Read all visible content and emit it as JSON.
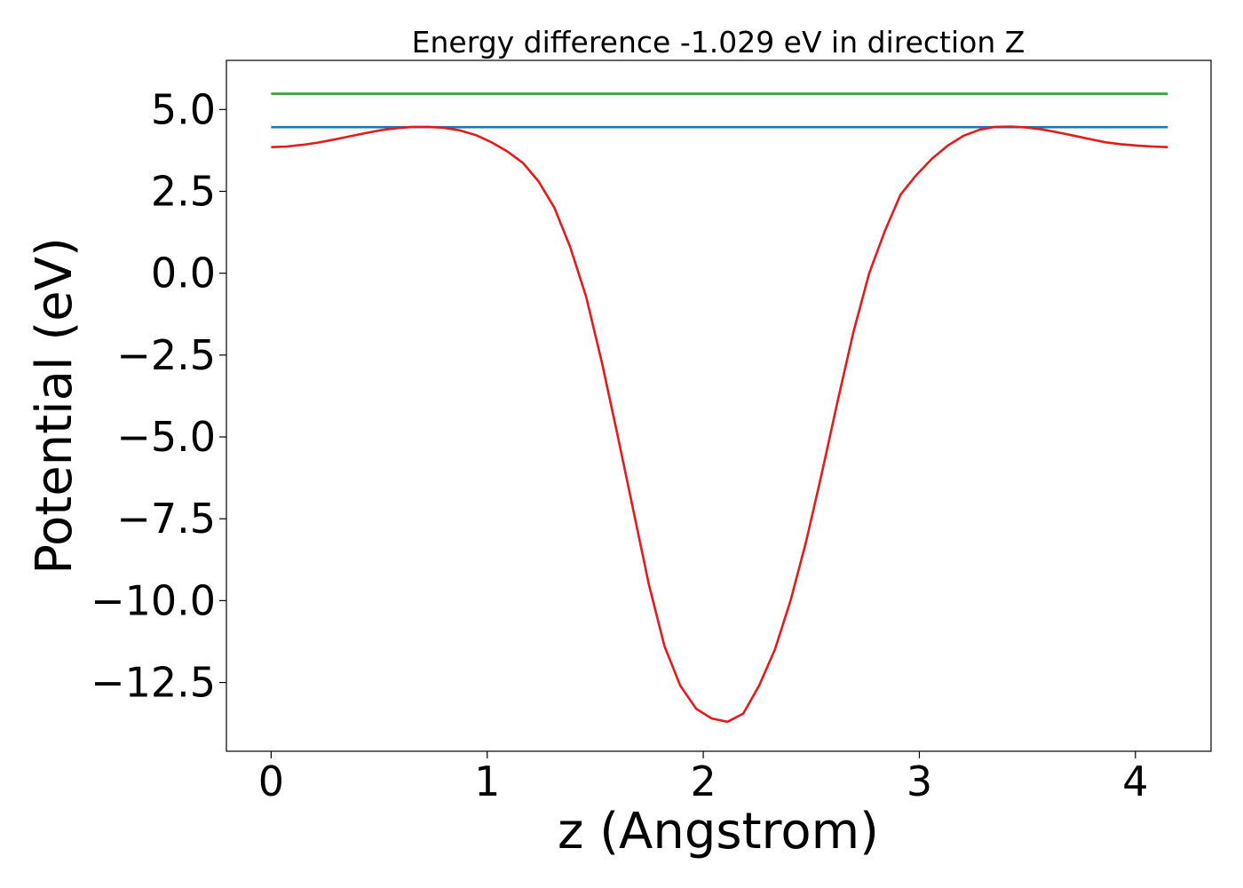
{
  "chart_data": {
    "type": "line",
    "title": "Energy difference -1.029 eV in direction Z",
    "xlabel": "z (Angstrom)",
    "ylabel": "Potential (eV)",
    "xlim": [
      -0.207,
      4.35
    ],
    "ylim": [
      -14.6,
      6.5
    ],
    "xticks": [
      0,
      1,
      2,
      3,
      4
    ],
    "xtick_labels": [
      "0",
      "1",
      "2",
      "3",
      "4"
    ],
    "yticks": [
      5.0,
      2.5,
      0.0,
      -2.5,
      -5.0,
      -7.5,
      -10.0,
      -12.5
    ],
    "ytick_labels": [
      "5.0",
      "2.5",
      "0.0",
      "−2.5",
      "−5.0",
      "−7.5",
      "−10.0",
      "−12.5"
    ],
    "grid": false,
    "series": [
      {
        "color": "#2ca02c",
        "x": [
          0,
          4.15
        ],
        "y": [
          5.48,
          5.48
        ]
      },
      {
        "color": "#1f77b4",
        "x": [
          0,
          4.15
        ],
        "y": [
          4.46,
          4.46
        ]
      },
      {
        "color": "#e41a1c",
        "x": [
          0,
          0.073,
          0.146,
          0.219,
          0.291,
          0.364,
          0.437,
          0.51,
          0.583,
          0.656,
          0.728,
          0.801,
          0.874,
          0.947,
          1.02,
          1.093,
          1.165,
          1.238,
          1.311,
          1.384,
          1.457,
          1.53,
          1.602,
          1.675,
          1.748,
          1.821,
          1.894,
          1.967,
          2.039,
          2.112,
          2.185,
          2.258,
          2.331,
          2.404,
          2.476,
          2.549,
          2.622,
          2.695,
          2.768,
          2.841,
          2.913,
          2.986,
          3.059,
          3.132,
          3.205,
          3.278,
          3.35,
          3.423,
          3.496,
          3.569,
          3.642,
          3.715,
          3.787,
          3.86,
          3.933,
          4.006,
          4.079,
          4.15
        ],
        "y": [
          3.85,
          3.87,
          3.92,
          3.99,
          4.08,
          4.18,
          4.28,
          4.37,
          4.43,
          4.47,
          4.47,
          4.44,
          4.36,
          4.22,
          4.0,
          3.72,
          3.37,
          2.8,
          2.0,
          0.8,
          -0.7,
          -2.7,
          -4.9,
          -7.2,
          -9.5,
          -11.4,
          -12.6,
          -13.3,
          -13.6,
          -13.7,
          -13.45,
          -12.6,
          -11.5,
          -10.0,
          -8.2,
          -6.1,
          -3.9,
          -1.8,
          0.0,
          1.3,
          2.4,
          3.0,
          3.5,
          3.9,
          4.2,
          4.38,
          4.47,
          4.48,
          4.45,
          4.39,
          4.3,
          4.2,
          4.1,
          4.0,
          3.94,
          3.9,
          3.87,
          3.85
        ]
      }
    ]
  }
}
